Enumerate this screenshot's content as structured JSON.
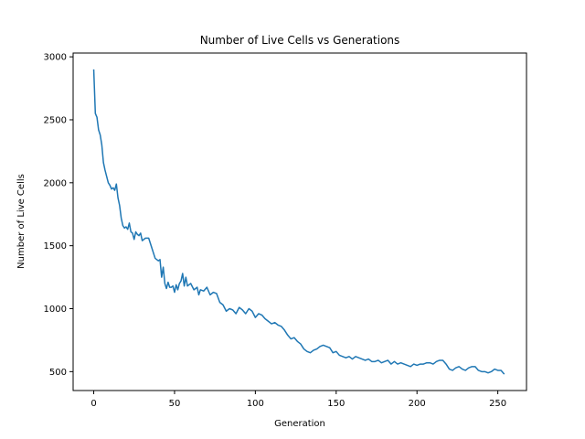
{
  "chart_data": {
    "type": "line",
    "title": "Number of Live Cells vs Generations",
    "xlabel": "Generation",
    "ylabel": "Number of Live Cells",
    "xlim": [
      -12.75,
      267.75
    ],
    "ylim": [
      350,
      3030
    ],
    "xticks": [
      0,
      50,
      100,
      150,
      200,
      250
    ],
    "yticks": [
      500,
      1000,
      1500,
      2000,
      2500,
      3000
    ],
    "grid": false,
    "series": [
      {
        "color": "#1f77b4",
        "x": [
          0,
          1,
          2,
          3,
          4,
          5,
          6,
          7,
          8,
          9,
          10,
          11,
          12,
          13,
          14,
          15,
          16,
          17,
          18,
          19,
          20,
          21,
          22,
          23,
          24,
          25,
          26,
          27,
          28,
          29,
          30,
          32,
          34,
          36,
          38,
          40,
          41,
          42,
          43,
          44,
          45,
          46,
          47,
          48,
          49,
          50,
          51,
          52,
          53,
          54,
          55,
          56,
          57,
          58,
          60,
          62,
          64,
          65,
          66,
          68,
          70,
          72,
          74,
          76,
          78,
          80,
          82,
          84,
          86,
          88,
          90,
          92,
          94,
          96,
          98,
          100,
          102,
          104,
          106,
          108,
          110,
          112,
          114,
          116,
          118,
          120,
          122,
          124,
          126,
          128,
          130,
          132,
          134,
          136,
          138,
          140,
          142,
          144,
          146,
          148,
          150,
          152,
          154,
          156,
          158,
          160,
          162,
          164,
          166,
          168,
          170,
          172,
          174,
          176,
          178,
          180,
          182,
          184,
          186,
          188,
          190,
          192,
          194,
          196,
          198,
          200,
          202,
          204,
          206,
          208,
          210,
          212,
          214,
          216,
          218,
          220,
          222,
          224,
          226,
          228,
          230,
          232,
          234,
          236,
          238,
          240,
          242,
          244,
          246,
          248,
          250,
          252,
          254
        ],
        "values": [
          2900,
          2550,
          2520,
          2420,
          2380,
          2300,
          2160,
          2100,
          2050,
          2000,
          1980,
          1950,
          1960,
          1940,
          1990,
          1880,
          1820,
          1720,
          1660,
          1640,
          1650,
          1630,
          1680,
          1610,
          1600,
          1550,
          1610,
          1590,
          1580,
          1600,
          1540,
          1560,
          1560,
          1480,
          1400,
          1380,
          1390,
          1250,
          1330,
          1200,
          1160,
          1210,
          1170,
          1170,
          1180,
          1130,
          1190,
          1150,
          1200,
          1220,
          1280,
          1180,
          1250,
          1180,
          1200,
          1150,
          1170,
          1110,
          1150,
          1140,
          1170,
          1110,
          1130,
          1120,
          1050,
          1030,
          980,
          1000,
          990,
          960,
          1010,
          990,
          960,
          1000,
          980,
          930,
          960,
          950,
          920,
          900,
          880,
          890,
          870,
          860,
          830,
          790,
          760,
          770,
          740,
          720,
          680,
          660,
          650,
          670,
          680,
          700,
          710,
          700,
          690,
          650,
          660,
          630,
          620,
          610,
          620,
          600,
          620,
          610,
          600,
          590,
          600,
          580,
          580,
          590,
          570,
          580,
          590,
          560,
          580,
          560,
          570,
          560,
          550,
          540,
          560,
          550,
          560,
          560,
          570,
          570,
          560,
          580,
          590,
          590,
          560,
          520,
          510,
          530,
          540,
          520,
          510,
          530,
          540,
          540,
          510,
          500,
          500,
          490,
          500,
          520,
          510,
          510,
          480
        ]
      }
    ]
  }
}
